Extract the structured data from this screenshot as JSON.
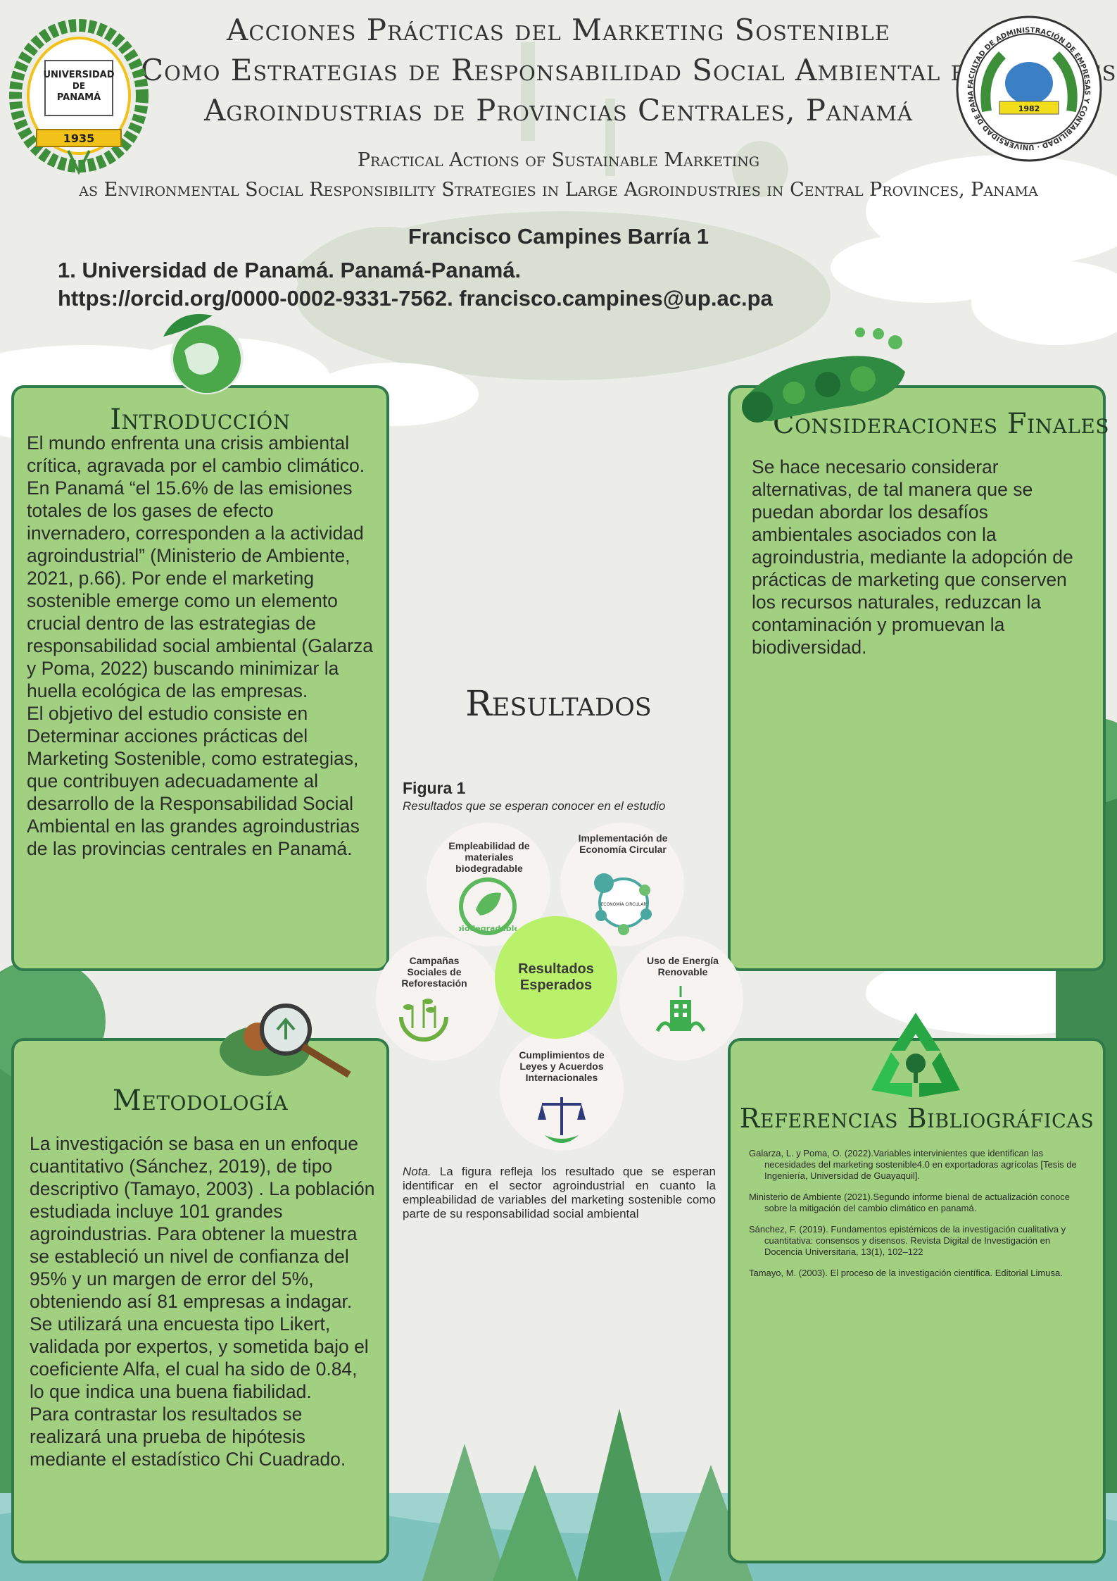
{
  "header": {
    "title_es": [
      "Acciones Prácticas del Marketing Sostenible",
      "Como Estrategias de Responsabilidad Social Ambiental en Grandes",
      "Agroindustrias de Provincias Centrales, Panamá"
    ],
    "title_en": [
      "Practical Actions of Sustainable Marketing",
      "as Environmental Social Responsibility Strategies in Large Agroindustries in Central Provinces, Panama"
    ],
    "author": "Francisco Campines Barría 1",
    "affiliation": [
      "1.  Universidad de Panamá. Panamá-Panamá.",
      "https://orcid.org/0000-0002-9331-7562. francisco.campines@up.ac.pa"
    ]
  },
  "logos": {
    "left": {
      "text_1": "UNIVERSIDAD",
      "text_2": "DE",
      "text_3": "PANAMÁ",
      "year": "1935"
    },
    "right": {
      "ring_text": "FACULTAD DE ADMINISTRACIÓN DE EMPRESAS Y CONTABILIDAD · UNIVERSIDAD DE PANAMÁ",
      "year": "1982"
    }
  },
  "intro": {
    "title": "Introducción",
    "p1": "El mundo enfrenta una crisis ambiental crítica, agravada por el cambio climático. En Panamá “el 15.6% de las emisiones totales de los gases de efecto invernadero, corresponden a la actividad agroindustrial” (Ministerio de Ambiente, 2021, p.66). Por ende el marketing sostenible emerge como un elemento crucial dentro de las estrategias de responsabilidad social ambiental (Galarza y Poma, 2022) buscando minimizar la huella ecológica de las empresas.",
    "p2": "El objetivo del estudio consiste en Determinar acciones prácticas del Marketing Sostenible, como estrategias, que contribuyen adecuadamente al desarrollo de la Responsabilidad Social Ambiental en las grandes agroindustrias  de las provincias centrales en Panamá."
  },
  "consideraciones": {
    "title": "Consideraciones Finales",
    "text": "Se hace necesario considerar alternativas, de tal manera que se puedan abordar los desafíos ambientales asociados con la agroindustria, mediante la adopción de prácticas de marketing que conserven los recursos naturales, reduzcan la contaminación y promuevan la biodiversidad."
  },
  "metodologia": {
    "title": "Metodología",
    "p1": "La investigación se basa en un enfoque cuantitativo (Sánchez, 2019), de tipo descriptivo (Tamayo, 2003) . La población estudiada incluye 101 grandes agroindustrias. Para obtener la muestra se estableció un nivel de confianza del 95% y un margen de error del 5%, obteniendo así 81 empresas a indagar. Se utilizará una encuesta tipo Likert, validada por expertos, y sometida bajo el coeficiente Alfa, el cual ha sido de 0.84, lo que indica una buena fiabilidad.",
    "p2": "Para contrastar los resultados se realizará una prueba de hipótesis mediante el estadístico Chi Cuadrado."
  },
  "resultados": {
    "title": "Resultados",
    "figure_label": "Figura 1",
    "figure_caption": "Resultados que se esperan conocer en el estudio",
    "center": "Resultados Esperados",
    "petals": [
      "Empleabilidad de materiales biodegradable",
      "Implementación de Economía Circular",
      "Uso de Energía Renovable",
      "Cumplimientos de Leyes y Acuerdos Internacionales",
      "Campañas Sociales de Reforestación"
    ],
    "icon_texts": {
      "biodegradable": "biodegradable",
      "circular": "ECONOMÍA CIRCULAR"
    },
    "nota_label": "Nota.",
    "nota_text": " La figura refleja los resultado que se esperan identificar en el sector agroindustrial en cuanto la empleabilidad de variables del marketing sostenible como parte de su responsabilidad social ambiental"
  },
  "referencias": {
    "title": "Referencias Bibliográficas",
    "items": [
      "Galarza, L. y Poma, O. (2022).Variables intervinientes que identifican las necesidades del marketing sostenible4.0 en exportadoras agrícolas [Tesis de Ingeniería, Universidad de Guayaquil].",
      "Ministerio de Ambiente (2021).Segundo informe bienal de actualización conoce sobre la mitigación del cambio climático en panamá.",
      "Sánchez, F. (2019). Fundamentos epistémicos de la investigación cualitativa y cuantitativa: consensos y disensos. Revista Digital de Investigación en Docencia Universitaria, 13(1), 102–122",
      "Tamayo, M. (2003). El proceso de la investigación científica. Editorial Limusa."
    ]
  },
  "colors": {
    "box_fill": "#a2d081",
    "box_border": "#2f7a4a",
    "center_circle": "#b9f16a",
    "background": "#ecede9"
  }
}
